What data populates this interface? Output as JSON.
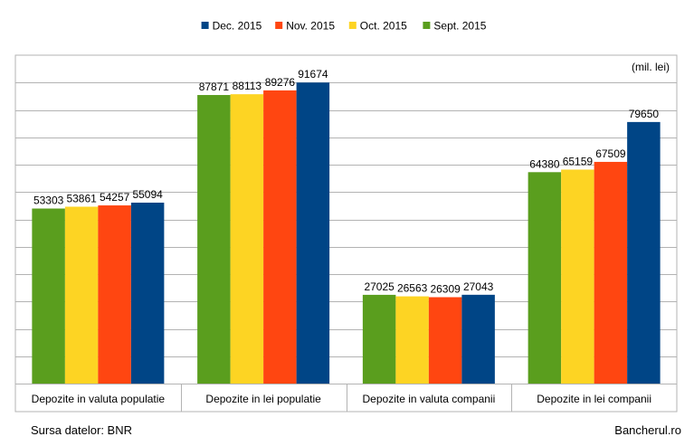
{
  "chart_data": {
    "type": "bar",
    "unit_label": "(mil. lei)",
    "categories": [
      "Depozite in valuta populatie",
      "Depozite in lei populatie",
      "Depozite in valuta companii",
      "Depozite in lei companii"
    ],
    "series": [
      {
        "name": "Sept. 2015",
        "color": "#5a9e1e",
        "values": [
          53303,
          87871,
          27025,
          64380
        ]
      },
      {
        "name": "Oct. 2015",
        "color": "#fdd423",
        "values": [
          53861,
          88113,
          26563,
          65159
        ]
      },
      {
        "name": "Nov. 2015",
        "color": "#ff4611",
        "values": [
          54257,
          89276,
          26309,
          67509
        ]
      },
      {
        "name": "Dec. 2015",
        "color": "#004586",
        "values": [
          55094,
          91674,
          27043,
          79650
        ]
      }
    ],
    "legend_order": [
      "Dec. 2015",
      "Nov. 2015",
      "Oct. 2015",
      "Sept. 2015"
    ],
    "ylim": [
      0,
      100000
    ],
    "y_gridline_step": 8333.33,
    "grid": true,
    "legend_position": "top"
  },
  "footer": {
    "source": "Sursa datelor: BNR",
    "site": "Bancherul.ro"
  }
}
